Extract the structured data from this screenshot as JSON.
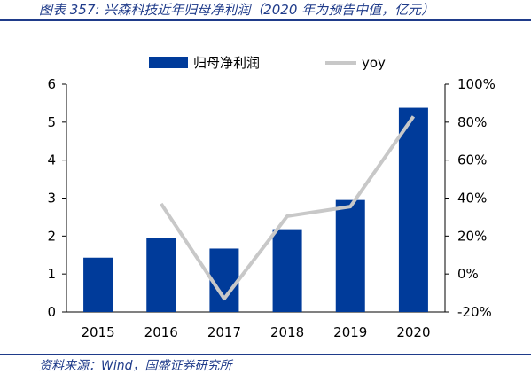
{
  "header": {
    "title": "图表 357:  兴森科技近年归母净利润（2020 年为预告中值，亿元）"
  },
  "footer": {
    "source": "资料来源：Wind，国盛证券研究所"
  },
  "colors": {
    "bar": "#003b9a",
    "line": "#c8c8c8",
    "title": "#1f3b8a",
    "axis": "#000000"
  },
  "chart_data": {
    "type": "bar",
    "categories": [
      "2015",
      "2016",
      "2017",
      "2018",
      "2019",
      "2020"
    ],
    "series": [
      {
        "name": "归母净利润",
        "type": "bar",
        "axis": "left",
        "values": [
          1.43,
          1.95,
          1.67,
          2.18,
          2.95,
          5.38
        ]
      },
      {
        "name": "yoy",
        "type": "line",
        "axis": "right",
        "values": [
          null,
          37,
          -13,
          30.5,
          35.5,
          83
        ]
      }
    ],
    "left_axis": {
      "ylim": [
        0,
        6
      ],
      "ticks": [
        "0",
        "1",
        "2",
        "3",
        "4",
        "5",
        "6"
      ]
    },
    "right_axis": {
      "ylim": [
        -20,
        100
      ],
      "ticks": [
        "-20%",
        "0%",
        "20%",
        "40%",
        "60%",
        "80%",
        "100%"
      ]
    },
    "legend": {
      "position": "top-center"
    },
    "grid": false
  }
}
